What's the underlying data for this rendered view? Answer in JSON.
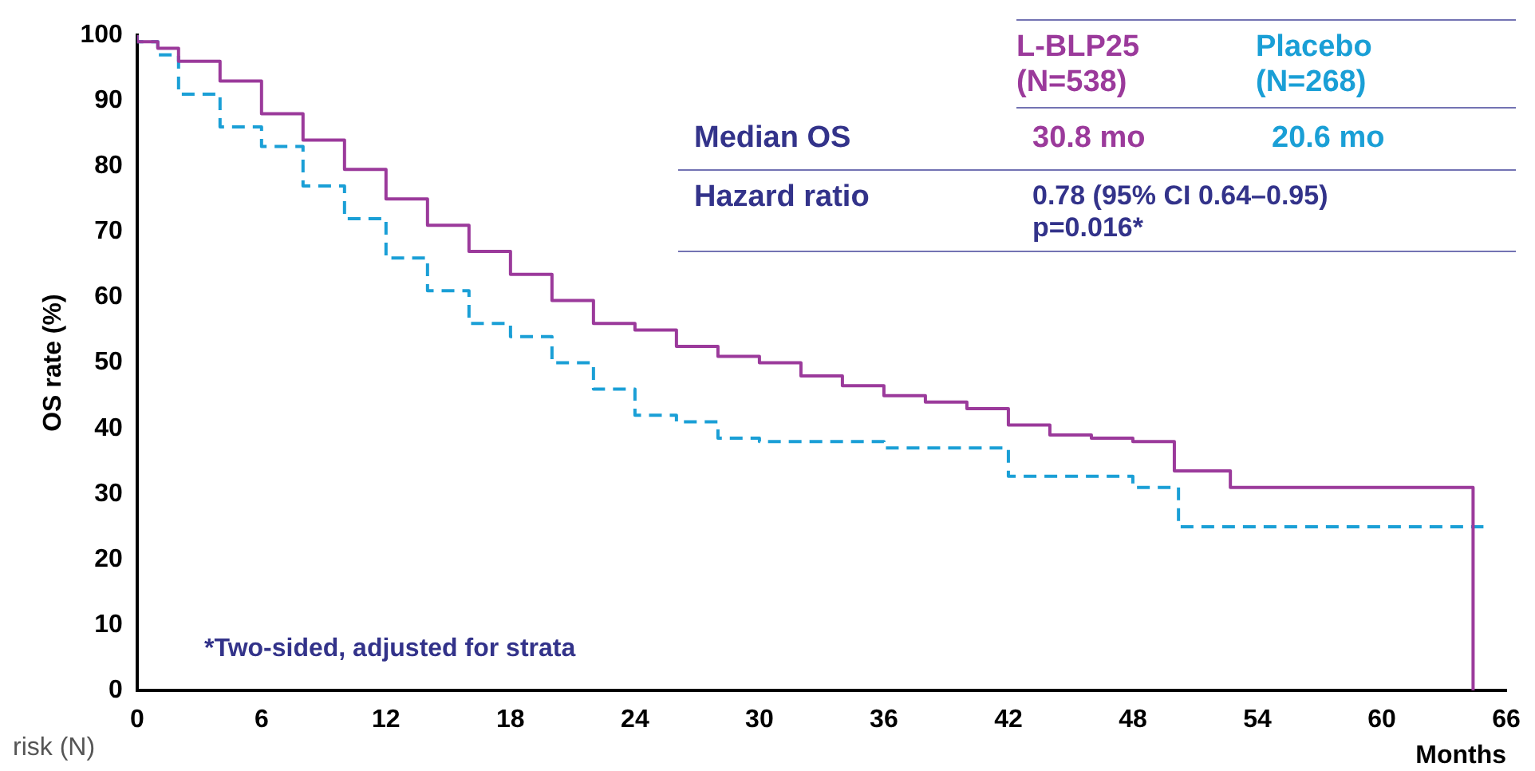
{
  "chart_data": {
    "type": "step",
    "xlabel": "Months",
    "ylabel": "OS rate (%)",
    "xlim": [
      0,
      66
    ],
    "xticks": [
      0,
      6,
      12,
      18,
      24,
      30,
      36,
      42,
      48,
      54,
      60,
      66
    ],
    "ylim": [
      0,
      100
    ],
    "yticks": [
      0,
      10,
      20,
      30,
      40,
      50,
      60,
      70,
      80,
      90,
      100
    ],
    "grid": false,
    "legend": "top right",
    "marker": "none",
    "series": [
      {
        "name": "L-BLP25",
        "color": "#9b3a9b",
        "line_style": "solid",
        "x": [
          0,
          1,
          2,
          4,
          6,
          8,
          10,
          12,
          14,
          16,
          18,
          20,
          22,
          24,
          26,
          28,
          30,
          32,
          34,
          36,
          38,
          40,
          42,
          44,
          46,
          48,
          50,
          52.7,
          58.9,
          64.4,
          64.4
        ],
        "values": [
          100,
          99,
          98,
          96,
          93,
          88,
          84,
          79.5,
          75,
          71,
          67,
          63.5,
          59.5,
          56,
          55,
          52.5,
          51,
          50,
          48,
          46.5,
          45,
          44,
          43,
          40.5,
          39,
          38.5,
          38,
          33.5,
          31,
          31,
          0
        ]
      },
      {
        "name": "Placebo",
        "color": "#1a9fd6",
        "line_style": "dashed",
        "x": [
          0,
          1,
          2,
          4,
          6,
          8,
          10,
          12,
          14,
          16,
          18,
          20,
          22,
          24,
          26,
          28,
          30,
          36,
          42,
          48,
          50.2,
          59.5,
          64.9
        ],
        "values": [
          100,
          99,
          97,
          91,
          86,
          83,
          77,
          72,
          66,
          61,
          56,
          54,
          50,
          46,
          42,
          41,
          38.5,
          38,
          37,
          32.7,
          31,
          25,
          25
        ]
      }
    ],
    "annotations": [
      "(N=538)",
      "(N=268)",
      "Median OS",
      "30.8 mo",
      "20.6 mo",
      "Hazard ratio",
      "0.78 (95% CI 0.64–0.95)",
      "p=0.016*",
      "*Two-sided, adjusted for strata",
      "risk (N)"
    ]
  }
}
